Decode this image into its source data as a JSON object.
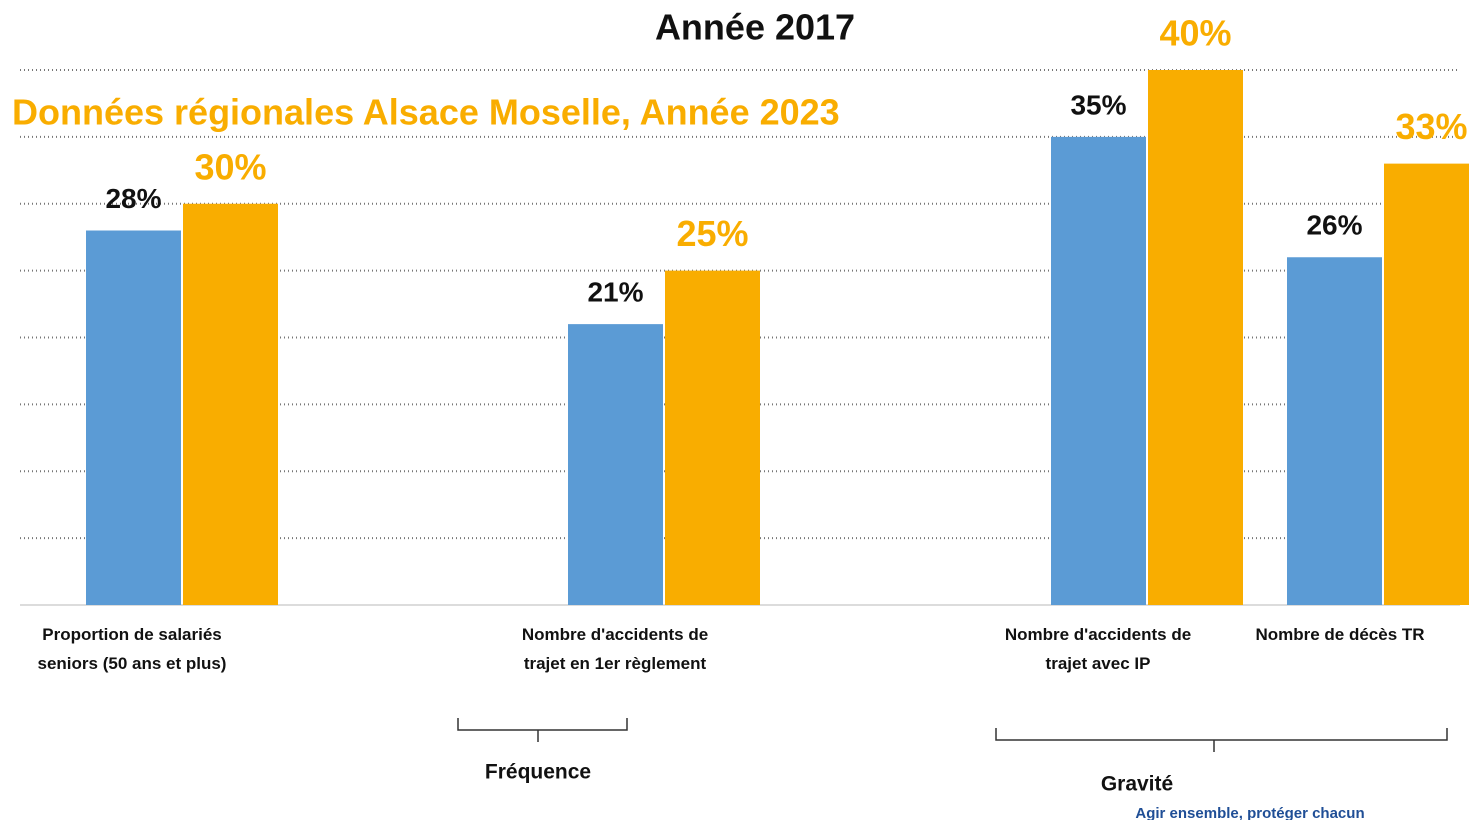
{
  "chart_data": {
    "type": "bar",
    "title": "Année 2017",
    "subtitle": "Données régionales Alsace Moselle, Année 2023",
    "categories": [
      "Proportion de salariés\nseniors (50 ans et plus)",
      "Nombre d'accidents de\ntrajet en 1er règlement",
      "Nombre d'accidents de\ntrajet avec IP",
      "Nombre de décès TR"
    ],
    "series": [
      {
        "color": "#5b9bd5",
        "values": [
          28,
          21,
          35,
          26
        ],
        "value_labels": [
          "28%",
          "21%",
          "35%",
          "26%"
        ]
      },
      {
        "color": "#f9ad00",
        "values": [
          30,
          25,
          40,
          33
        ],
        "value_labels": [
          "30%",
          "25%",
          "40%",
          "33%"
        ]
      }
    ],
    "ylim": [
      0,
      40
    ],
    "yticks": [
      0,
      5,
      10,
      15,
      20,
      25,
      30,
      35,
      40
    ],
    "grid": true,
    "groups": [
      "Fréquence",
      "Gravité"
    ],
    "footer": "Agir ensemble, protéger chacun"
  }
}
